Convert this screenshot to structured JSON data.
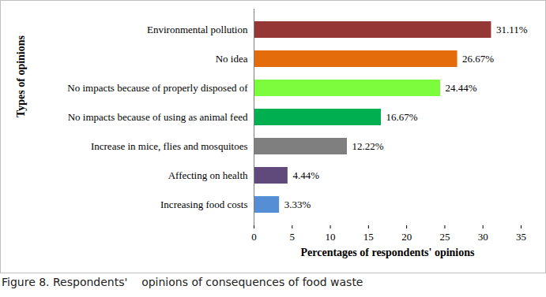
{
  "chart_data": {
    "type": "bar",
    "orientation": "horizontal",
    "caption": "Figure 8. Respondents'    opinions of consequences of food waste",
    "x_label": "Percentages of respondents' opinions",
    "y_label": "Types of opinions",
    "categories": [
      "Environmental pollution",
      "No idea",
      "No impacts because of properly disposed of",
      "No impacts because of using as animal feed",
      "Increase in mice, flies and mosquitoes",
      "Affecting on health",
      "Increasing food costs"
    ],
    "values": [
      31.11,
      26.67,
      24.44,
      16.67,
      12.22,
      4.44,
      3.33
    ],
    "value_labels": [
      "31.11%",
      "26.67%",
      "24.44%",
      "16.67%",
      "12.22%",
      "4.44%",
      "3.33%"
    ],
    "colors": [
      "#953735",
      "#e46c0a",
      "#7cfc3c",
      "#00b050",
      "#7f7f7f",
      "#604a7b",
      "#558ed5"
    ],
    "xlim": [
      0,
      35
    ],
    "xticks": [
      0,
      5,
      10,
      15,
      20,
      25,
      30,
      35
    ],
    "grid": false,
    "data_labels": true
  }
}
